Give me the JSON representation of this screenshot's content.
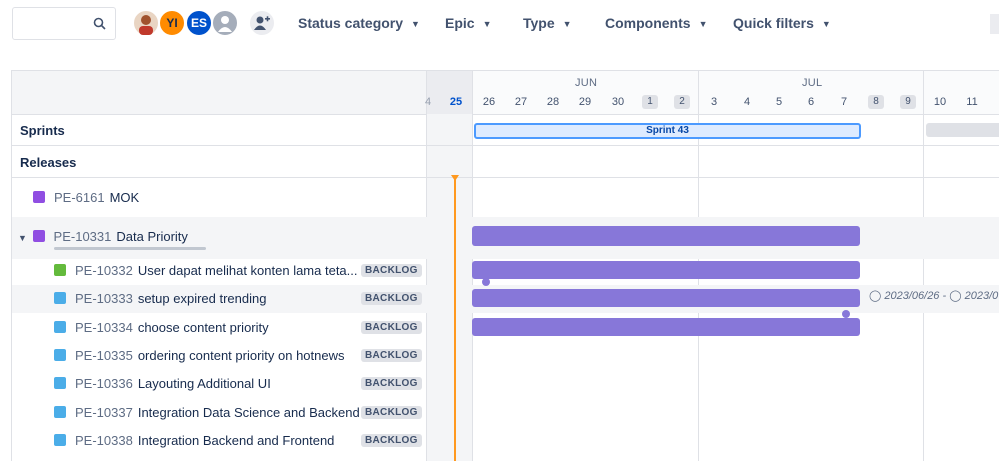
{
  "toolbar": {
    "search_placeholder": "",
    "avatars": [
      {
        "initials": "",
        "color": "#c0392b"
      },
      {
        "initials": "YI",
        "color": "#ff8b00"
      },
      {
        "initials": "ES",
        "color": "#0052cc"
      },
      {
        "initials": "",
        "color": "#a5adba"
      }
    ],
    "filters": [
      "Status category",
      "Epic",
      "Type",
      "Components",
      "Quick filters"
    ]
  },
  "timeline": {
    "months": [
      "JUN",
      "JUL"
    ],
    "days": [
      "4",
      "25",
      "26",
      "27",
      "28",
      "29",
      "30",
      "1",
      "2",
      "3",
      "4",
      "5",
      "6",
      "7",
      "8",
      "9",
      "10",
      "11"
    ],
    "sprint_label": "Sprint 43"
  },
  "sections": {
    "sprints": "Sprints",
    "releases": "Releases"
  },
  "issues": [
    {
      "key": "PE-6161",
      "summary": "MOK",
      "status": "",
      "type": "epic"
    },
    {
      "key": "PE-10331",
      "summary": "Data Priority",
      "status": "",
      "type": "epic"
    },
    {
      "key": "PE-10332",
      "summary": "User dapat melihat konten lama teta...",
      "status": "BACKLOG",
      "type": "story"
    },
    {
      "key": "PE-10333",
      "summary": "setup expired trending",
      "status": "BACKLOG",
      "type": "task"
    },
    {
      "key": "PE-10334",
      "summary": "choose content priority",
      "status": "BACKLOG",
      "type": "task"
    },
    {
      "key": "PE-10335",
      "summary": "ordering content priority on hotnews",
      "status": "BACKLOG",
      "type": "task"
    },
    {
      "key": "PE-10336",
      "summary": "Layouting Additional UI",
      "status": "BACKLOG",
      "type": "task"
    },
    {
      "key": "PE-10337",
      "summary": "Integration Data Science and Backend",
      "status": "BACKLOG",
      "type": "task"
    },
    {
      "key": "PE-10338",
      "summary": "Integration Backend and Frontend",
      "status": "BACKLOG",
      "type": "task"
    }
  ],
  "date_range_label": "2023/06/26 - ",
  "date_range_label2": "2023/0",
  "colors": {
    "epic": "#904ee2",
    "story": "#63ba3c",
    "task": "#4bade8",
    "bar": "#8777d9",
    "today_marker": "#ff991f"
  }
}
